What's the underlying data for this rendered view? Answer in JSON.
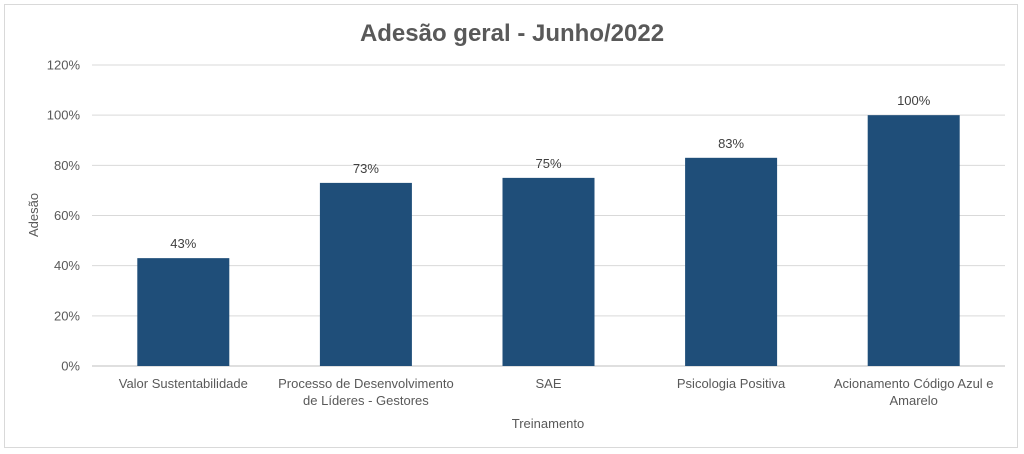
{
  "chart_data": {
    "type": "bar",
    "title": "Adesão geral - Junho/2022",
    "xlabel": "Treinamento",
    "ylabel": "Adesão",
    "categories": [
      [
        "Valor Sustentabilidade"
      ],
      [
        "Processo de Desenvolvimento",
        "de Líderes - Gestores"
      ],
      [
        "SAE"
      ],
      [
        "Psicologia Positiva"
      ],
      [
        "Acionamento Código Azul e",
        "Amarelo"
      ]
    ],
    "values": [
      43,
      73,
      75,
      83,
      100
    ],
    "value_labels": [
      "43%",
      "73%",
      "75%",
      "83%",
      "100%"
    ],
    "ylim": [
      0,
      120
    ],
    "yticks": [
      0,
      20,
      40,
      60,
      80,
      100,
      120
    ],
    "ytick_labels": [
      "0%",
      "20%",
      "40%",
      "60%",
      "80%",
      "100%",
      "120%"
    ],
    "grid": true,
    "colors": {
      "bar": "#1f4e79",
      "grid": "#d9d9d9"
    }
  }
}
